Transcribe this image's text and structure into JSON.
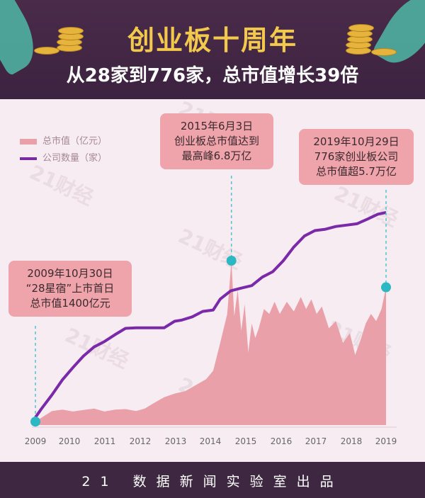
{
  "header": {
    "title": "创业板十周年",
    "subtitle": "从28家到776家，总市值增长39倍"
  },
  "legend": {
    "market_cap": "总市值（亿元）",
    "company_count": "公司数量（家）"
  },
  "callouts": {
    "start": [
      "2009年10月30日",
      "“28星宿”上市首日",
      "总市值1400亿元"
    ],
    "peak": [
      "2015年6月3日",
      "创业板总市值达到",
      "最高峰6.8万亿"
    ],
    "latest": [
      "2019年10月29日",
      "776家创业板公司",
      "总市值超5.7万亿"
    ]
  },
  "footer": "21 数据新闻实验室出品",
  "watermark": "21财经",
  "colors": {
    "market_cap": "#e9a0a8",
    "company_count": "#7a2aa8",
    "title": "#f2c94c"
  },
  "chart_data": {
    "type": "area",
    "x_ticks": [
      "2009",
      "2010",
      "2011",
      "2012",
      "2013",
      "2014",
      "2015",
      "2016",
      "2017",
      "2018",
      "2019"
    ],
    "xlim": [
      2009.83,
      2019.83
    ],
    "series": [
      {
        "name": "总市值（亿元）",
        "type": "area",
        "x": [
          2009.83,
          2010.0,
          2010.3,
          2010.6,
          2010.9,
          2011.2,
          2011.5,
          2011.8,
          2012.1,
          2012.4,
          2012.7,
          2012.95,
          2013.2,
          2013.5,
          2013.8,
          2014.1,
          2014.4,
          2014.7,
          2014.9,
          2015.1,
          2015.3,
          2015.42,
          2015.5,
          2015.6,
          2015.7,
          2015.8,
          2015.9,
          2016.0,
          2016.1,
          2016.2,
          2016.35,
          2016.5,
          2016.65,
          2016.8,
          2017.0,
          2017.2,
          2017.4,
          2017.55,
          2017.7,
          2017.85,
          2018.0,
          2018.2,
          2018.4,
          2018.6,
          2018.8,
          2018.95,
          2019.1,
          2019.25,
          2019.4,
          2019.55,
          2019.7,
          2019.83
        ],
        "values": [
          1400,
          3000,
          5800,
          6400,
          5600,
          6200,
          6800,
          5600,
          6400,
          6600,
          5800,
          6800,
          9000,
          11500,
          13000,
          14000,
          16500,
          19000,
          22500,
          34000,
          46000,
          68000,
          45000,
          56000,
          39000,
          50000,
          30000,
          42000,
          36000,
          40000,
          48000,
          46000,
          51000,
          46000,
          51000,
          47000,
          53000,
          48000,
          52000,
          46000,
          49000,
          40000,
          43000,
          34000,
          38000,
          29000,
          35000,
          42000,
          46000,
          43000,
          48000,
          57000
        ]
      },
      {
        "name": "公司数量（家）",
        "type": "line",
        "x": [
          2009.83,
          2010.0,
          2010.3,
          2010.6,
          2010.9,
          2011.2,
          2011.5,
          2011.8,
          2012.1,
          2012.4,
          2012.7,
          2012.95,
          2013.2,
          2013.5,
          2013.8,
          2014.0,
          2014.3,
          2014.6,
          2014.9,
          2015.1,
          2015.4,
          2015.7,
          2016.0,
          2016.3,
          2016.6,
          2016.9,
          2017.2,
          2017.5,
          2017.8,
          2018.1,
          2018.4,
          2018.7,
          2019.0,
          2019.3,
          2019.6,
          2019.83
        ],
        "values": [
          28,
          59,
          110,
          165,
          210,
          252,
          285,
          305,
          330,
          353,
          355,
          355,
          355,
          355,
          379,
          383,
          395,
          415,
          420,
          460,
          490,
          500,
          509,
          540,
          560,
          600,
          650,
          690,
          710,
          715,
          725,
          730,
          735,
          752,
          770,
          776
        ]
      }
    ],
    "annotations": [
      {
        "date": "2009年10月30日",
        "value": 1400
      },
      {
        "date": "2015年6月3日",
        "value": 68000
      },
      {
        "date": "2019年10月29日",
        "value": 57000
      }
    ]
  }
}
